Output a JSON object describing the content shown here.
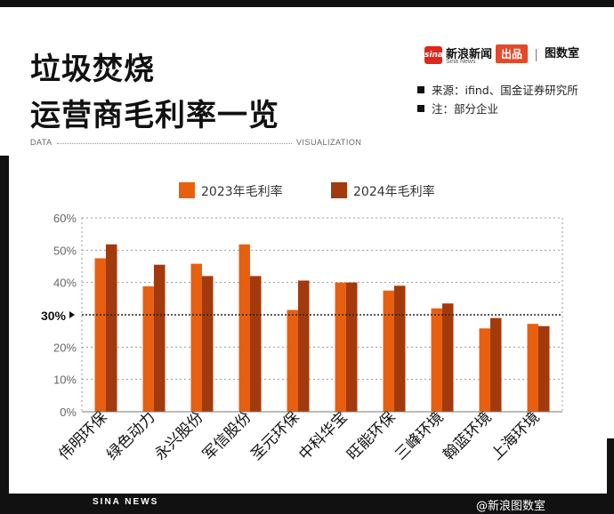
{
  "title": {
    "line1": "垃圾焚烧",
    "line2": "运营商毛利率一览"
  },
  "brand": {
    "logo": "sina",
    "name": "新浪新闻",
    "name_sub": "Sina News",
    "badge": "出品",
    "separator": "|",
    "tushushi": "图数室"
  },
  "notes": [
    "来源：ifind、国金证券研究所",
    "注：部分企业"
  ],
  "divider": {
    "left": "DATA",
    "right": "VISUALIZATION"
  },
  "footer": {
    "left": "SINA NEWS",
    "right": "@新浪图数室"
  },
  "colors": {
    "series_2023": "#e8600f",
    "series_2024": "#a33a0d",
    "frame": "#111111"
  },
  "chart_data": {
    "type": "bar",
    "categories": [
      "伟明环保",
      "绿色动力",
      "永兴股份",
      "军信股份",
      "圣元环保",
      "中科华宝",
      "旺能环保",
      "三峰环境",
      "翰蓝环境",
      "上海环境"
    ],
    "series": [
      {
        "name": "2023年毛利率",
        "values": [
          47.5,
          38.8,
          45.8,
          51.8,
          31.5,
          40.0,
          37.5,
          32.0,
          25.8,
          27.2
        ]
      },
      {
        "name": "2024年毛利率",
        "values": [
          51.8,
          45.5,
          42.0,
          42.0,
          40.6,
          40.0,
          39.0,
          33.5,
          29.0,
          26.5
        ]
      }
    ],
    "ylim": [
      0,
      60
    ],
    "yticks": [
      "0%",
      "10%",
      "20%",
      "30%",
      "40%",
      "50%",
      "60%"
    ],
    "reference": {
      "value": 30,
      "label": "30%"
    },
    "legend_position": "top-center",
    "grid": true
  }
}
